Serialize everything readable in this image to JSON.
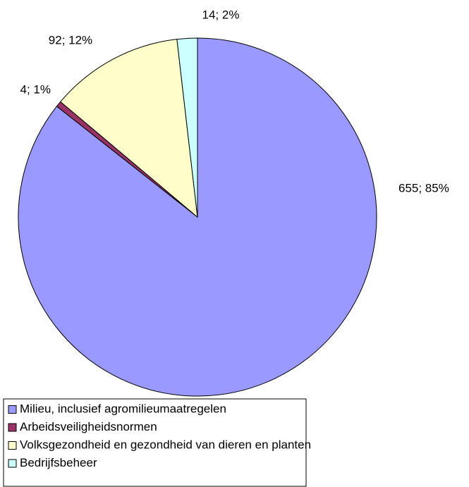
{
  "chart_data": {
    "type": "pie",
    "categories": [
      "Milieu, inclusief agromilieumaatregelen",
      "Arbeidsveiligheidsnormen",
      "Volksgezondheid en gezondheid van dieren en planten",
      "Bedrijfsbeheer"
    ],
    "values": [
      655,
      4,
      92,
      14
    ],
    "value_labels": [
      "655; 85%",
      "4; 1%",
      "92; 12%",
      "14; 2%"
    ],
    "colors": [
      "#9999ff",
      "#993366",
      "#ffffcc",
      "#ccffff"
    ]
  }
}
